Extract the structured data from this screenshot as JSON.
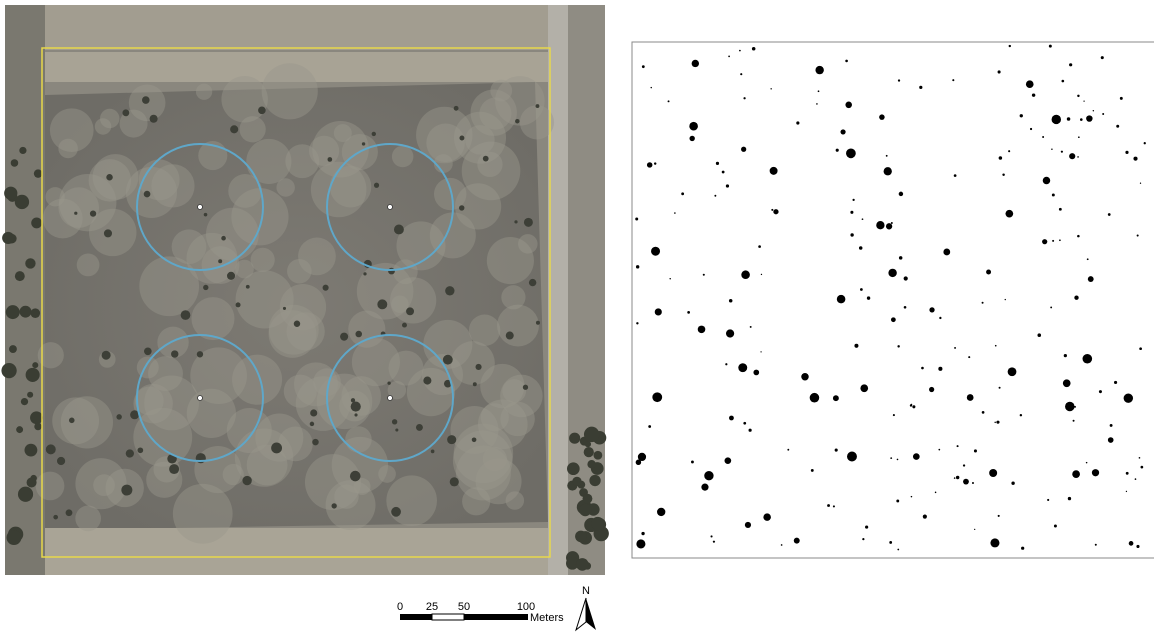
{
  "scale_bar": {
    "labels": [
      "0",
      "25",
      "50",
      "100"
    ],
    "unit": "Meters"
  },
  "north_arrow": {
    "label": "N"
  }
}
